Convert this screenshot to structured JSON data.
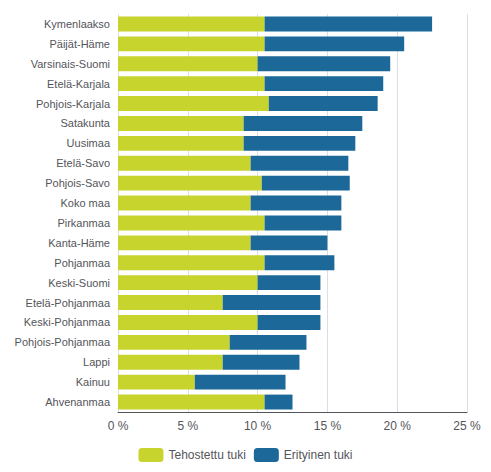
{
  "chart_data": {
    "type": "bar",
    "orientation": "horizontal",
    "stacked": true,
    "categories": [
      "Kymenlaakso",
      "Päijät-Häme",
      "Varsinais-Suomi",
      "Etelä-Karjala",
      "Pohjois-Karjala",
      "Satakunta",
      "Uusimaa",
      "Etelä-Savo",
      "Pohjois-Savo",
      "Koko maa",
      "Pirkanmaa",
      "Kanta-Häme",
      "Pohjanmaa",
      "Keski-Suomi",
      "Etelä-Pohjanmaa",
      "Keski-Pohjanmaa",
      "Pohjois-Pohjanmaa",
      "Lappi",
      "Kainuu",
      "Ahvenanmaa"
    ],
    "series": [
      {
        "name": "Tehostettu tuki",
        "color": "#c8d42e",
        "values": [
          10.5,
          10.5,
          10.0,
          10.5,
          10.8,
          9.0,
          9.0,
          9.5,
          10.3,
          9.5,
          10.5,
          9.5,
          10.5,
          10.0,
          7.5,
          10.0,
          8.0,
          7.5,
          5.5,
          10.5
        ]
      },
      {
        "name": "Erityinen tuki",
        "color": "#1b6899",
        "values": [
          12.0,
          10.0,
          9.5,
          8.5,
          7.8,
          8.5,
          8.0,
          7.0,
          6.3,
          6.5,
          5.5,
          5.5,
          5.0,
          4.5,
          7.0,
          4.5,
          5.5,
          5.5,
          6.5,
          2.0
        ]
      }
    ],
    "xlim": [
      0,
      25
    ],
    "xticks": [
      {
        "value": 0,
        "label": "0 %"
      },
      {
        "value": 5,
        "label": "5 %"
      },
      {
        "value": 10,
        "label": "10 %"
      },
      {
        "value": 15,
        "label": "15 %"
      },
      {
        "value": 20,
        "label": "20 %"
      },
      {
        "value": 25,
        "label": "25 %"
      }
    ],
    "grid": true,
    "legend": "bottom"
  }
}
